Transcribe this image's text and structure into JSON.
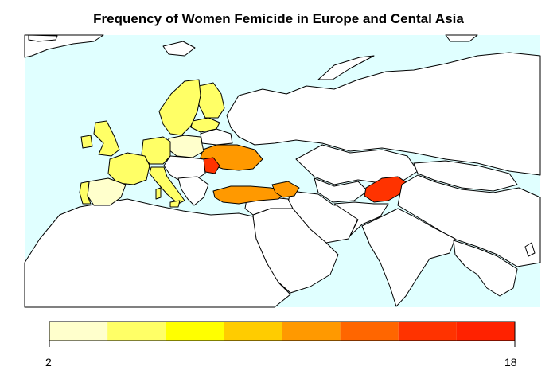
{
  "title": "Frequency of Women Femicide in Europe and Cental Asia",
  "colors": {
    "sea": "#E0FFFF",
    "land_default": "#FFFFFF",
    "border": "#000000"
  },
  "legend": {
    "min_label": "2",
    "max_label": "18",
    "min": 2,
    "max": 18,
    "bins": [
      "#FFFFCC",
      "#FFFF66",
      "#FFFF00",
      "#FFCC00",
      "#FF9900",
      "#FF6600",
      "#FF3300",
      "#FF2200"
    ]
  },
  "regions": [
    {
      "name": "Scandinavia",
      "color": "#FFFF66"
    },
    {
      "name": "Finland",
      "color": "#FFFF66"
    },
    {
      "name": "Baltics",
      "color": "#FFFF66"
    },
    {
      "name": "United Kingdom",
      "color": "#FFFF66"
    },
    {
      "name": "Ireland",
      "color": "#FFFF66"
    },
    {
      "name": "France",
      "color": "#FFFF66"
    },
    {
      "name": "Germany",
      "color": "#FFFF66"
    },
    {
      "name": "Poland",
      "color": "#FFFFCC"
    },
    {
      "name": "Spain",
      "color": "#FFFFCC"
    },
    {
      "name": "Portugal",
      "color": "#FFFF66"
    },
    {
      "name": "Italy",
      "color": "#FFFF66"
    },
    {
      "name": "Ukraine",
      "color": "#FF9900"
    },
    {
      "name": "Moldova",
      "color": "#FF3300"
    },
    {
      "name": "Turkey",
      "color": "#FF9900"
    },
    {
      "name": "Caucasus",
      "color": "#FF9900"
    },
    {
      "name": "Tajikistan",
      "color": "#FF3300"
    }
  ]
}
